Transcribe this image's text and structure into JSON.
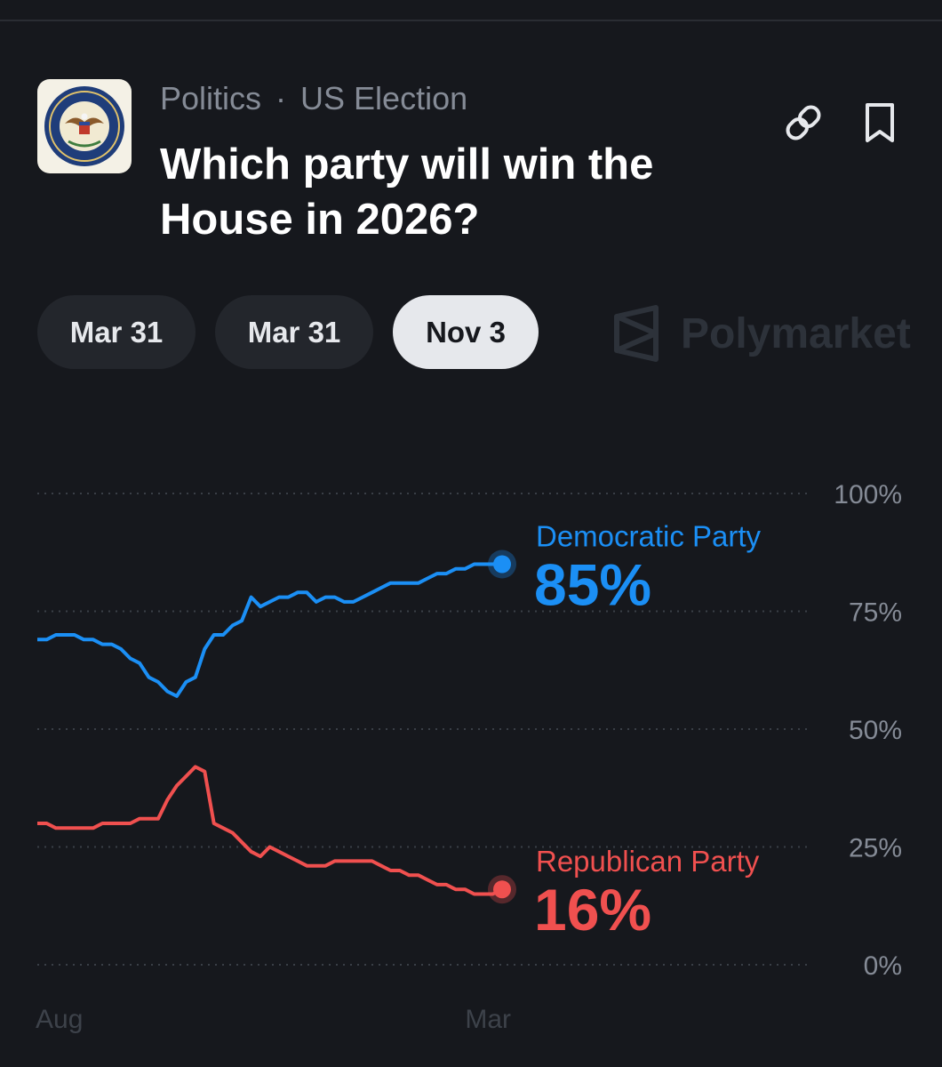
{
  "header": {
    "category": "Politics",
    "separator": "·",
    "subcategory": "US Election",
    "title": "Which party will win the House in 2026?",
    "icons": [
      "house-seal-icon",
      "link-icon",
      "bookmark-icon"
    ]
  },
  "date_tabs": [
    {
      "label": "Mar 31",
      "active": false
    },
    {
      "label": "Mar 31",
      "active": false
    },
    {
      "label": "Nov 3",
      "active": true
    }
  ],
  "brand": {
    "name": "Polymarket",
    "icon": "polymarket-logo-icon"
  },
  "colors": {
    "background": "#16181d",
    "democratic": "#1b8ff5",
    "republican": "#f0504f",
    "axis_text": "#858b96"
  },
  "chart_data": {
    "type": "line",
    "title": "",
    "xlabel": "",
    "ylabel": "",
    "x_ticks": [
      "Aug",
      "Mar"
    ],
    "y_ticks": [
      "100%",
      "75%",
      "50%",
      "25%",
      "0%"
    ],
    "ylim": [
      0,
      100
    ],
    "grid": "dotted horizontal",
    "x": [
      0,
      2,
      4,
      6,
      8,
      10,
      12,
      14,
      16,
      18,
      20,
      22,
      24,
      26,
      28,
      30,
      32,
      34,
      36,
      38,
      40,
      42,
      44,
      46,
      48,
      50,
      52,
      54,
      56,
      58,
      60,
      62,
      64,
      66,
      68,
      70,
      72,
      74,
      76,
      78,
      80,
      82,
      84,
      86,
      88,
      90,
      92,
      94,
      96,
      98,
      100
    ],
    "series": [
      {
        "name": "Democratic Party",
        "label": "85%",
        "color": "#1b8ff5",
        "values": [
          69,
          69,
          70,
          70,
          70,
          69,
          69,
          68,
          68,
          67,
          65,
          64,
          61,
          60,
          58,
          57,
          60,
          61,
          67,
          70,
          70,
          72,
          73,
          78,
          76,
          77,
          78,
          78,
          79,
          79,
          77,
          78,
          78,
          77,
          77,
          78,
          79,
          80,
          81,
          81,
          81,
          81,
          82,
          83,
          83,
          84,
          84,
          85,
          85,
          85,
          85
        ]
      },
      {
        "name": "Republican Party",
        "label": "16%",
        "color": "#f0504f",
        "values": [
          30,
          30,
          29,
          29,
          29,
          29,
          29,
          30,
          30,
          30,
          30,
          31,
          31,
          31,
          35,
          38,
          40,
          42,
          41,
          30,
          29,
          28,
          26,
          24,
          23,
          25,
          24,
          23,
          22,
          21,
          21,
          21,
          22,
          22,
          22,
          22,
          22,
          21,
          20,
          20,
          19,
          19,
          18,
          17,
          17,
          16,
          16,
          15,
          15,
          15,
          16
        ]
      }
    ]
  }
}
